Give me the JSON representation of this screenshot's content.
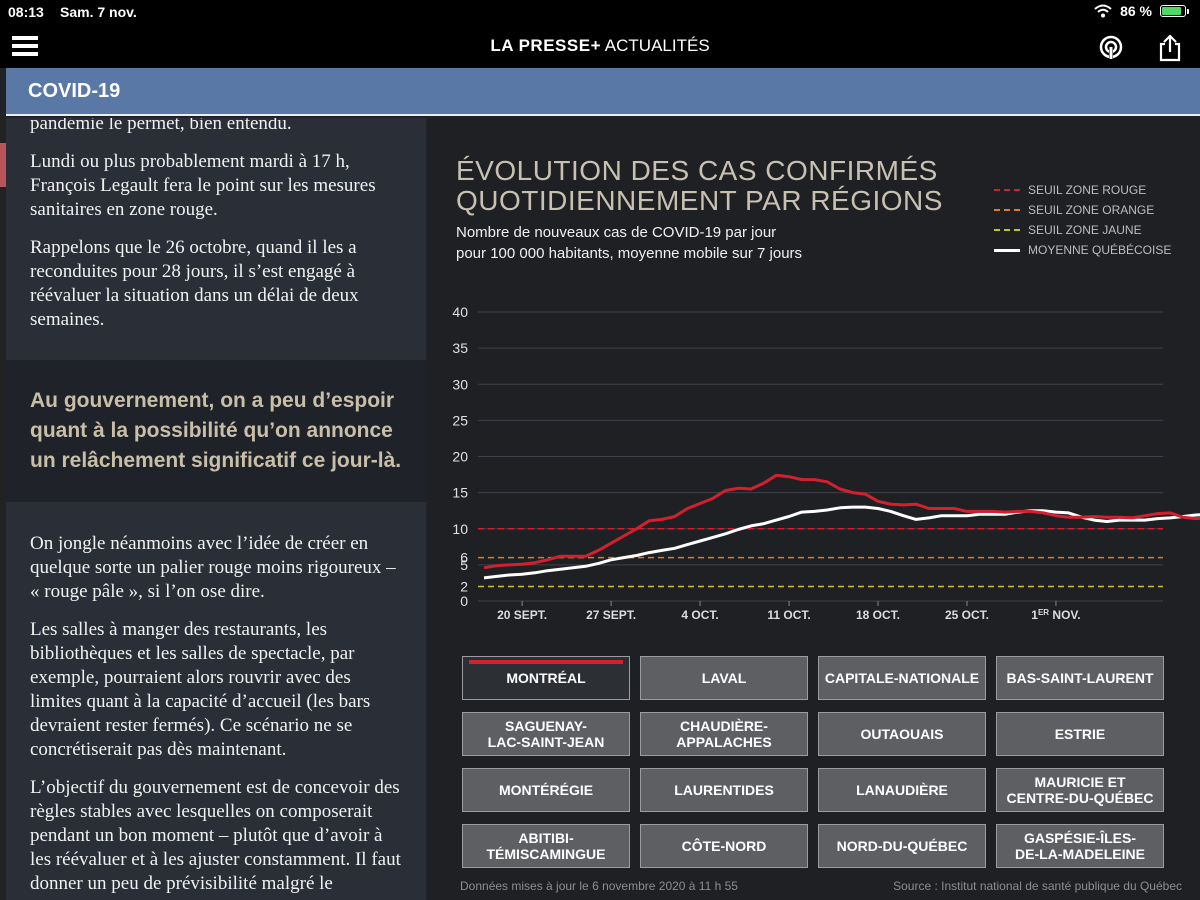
{
  "status": {
    "time": "08:13",
    "date": "Sam. 7 nov.",
    "battery": "86 %",
    "battery_level": 0.86,
    "wifi_icon": "wifi-icon"
  },
  "header": {
    "brand": "LA PRESSE+",
    "section": "ACTUALITÉS"
  },
  "banner": {
    "label": "COVID-19"
  },
  "article": {
    "paragraphs_top": [
      "pandémie le permet, bien entendu.",
      "Lundi ou plus probablement mardi à 17 h, François Legault fera le point sur les mesures sanitaires en zone rouge.",
      "Rappelons que le 26 octobre, quand il les a reconduites pour 28 jours, il s’est engagé à réévaluer la situation dans un délai de deux semaines."
    ],
    "quote": "Au gouvernement, on a peu d’espoir quant à la possibilité qu’on annonce un relâchement significatif ce jour-là.",
    "paragraphs_bottom": [
      "On jongle néanmoins avec l’idée de créer en quelque sorte un palier rouge moins rigoureux – « rouge pâle », si l’on ose dire.",
      "Les salles à manger des restaurants, les bibliothèques et les salles de spectacle, par exemple, pourraient alors rouvrir avec des limites quant à la capacité d’accueil (les bars devraient rester fermés). Ce scénario ne se concrétiserait pas dès maintenant.",
      "L’objectif du gouvernement est de concevoir des règles stables avec lesquelles on composerait pendant un bon moment – plutôt que d’avoir à les réévaluer et à les ajuster constamment. Il faut donner un peu de prévisibilité malgré le contexte."
    ]
  },
  "chart": {
    "title_line1": "ÉVOLUTION DES CAS CONFIRMÉS",
    "title_line2": "QUOTIDIENNEMENT PAR RÉGIONS",
    "subtitle_line1": "Nombre de nouveaux cas de COVID-19 par jour",
    "subtitle_line2": "pour 100 000 habitants, moyenne mobile sur 7 jours",
    "legend": [
      {
        "label": "SEUIL ZONE ROUGE",
        "color": "#d3202e",
        "style": "dashed"
      },
      {
        "label": "SEUIL ZONE ORANGE",
        "color": "#e07a1f",
        "style": "dashed"
      },
      {
        "label": "SEUIL ZONE JAUNE",
        "color": "#c9c21c",
        "style": "dashed"
      },
      {
        "label": "MOYENNE QUÉBÉCOISE",
        "color": "#ffffff",
        "style": "solid"
      }
    ],
    "regions": [
      {
        "label": "MONTRÉAL",
        "active": true
      },
      {
        "label": "LAVAL",
        "active": false
      },
      {
        "label": "CAPITALE-NATIONALE",
        "active": false
      },
      {
        "label": "BAS-SAINT-LAURENT",
        "active": false
      },
      {
        "label": "SAGUENAY-\nLAC-SAINT-JEAN",
        "active": false
      },
      {
        "label": "CHAUDIÈRE-\nAPPALACHES",
        "active": false
      },
      {
        "label": "OUTAOUAIS",
        "active": false
      },
      {
        "label": "ESTRIE",
        "active": false
      },
      {
        "label": "MONTÉRÉGIE",
        "active": false
      },
      {
        "label": "LAURENTIDES",
        "active": false
      },
      {
        "label": "LANAUDIÈRE",
        "active": false
      },
      {
        "label": "MAURICIE ET\nCENTRE-DU-QUÉBEC",
        "active": false
      },
      {
        "label": "ABITIBI-\nTÉMISCAMINGUE",
        "active": false
      },
      {
        "label": "CÔTE-NORD",
        "active": false
      },
      {
        "label": "NORD-DU-QUÉBEC",
        "active": false
      },
      {
        "label": "GASPÉSIE-ÎLES-\nDE-LA-MADELEINE",
        "active": false
      }
    ],
    "footer_left": "Données mises à jour le 6 novembre 2020 à 11 h 55",
    "footer_right": "Source : Institut national de santé publique du Québec"
  },
  "chart_data": {
    "type": "line",
    "x_tick_labels": [
      "20 SEPT.",
      "27 SEPT.",
      "4 OCT.",
      "11 OCT.",
      "18 OCT.",
      "25 OCT.",
      "1ER NOV."
    ],
    "y_ticks": [
      0,
      2,
      5,
      6,
      10,
      15,
      20,
      25,
      30,
      35,
      40
    ],
    "ylim": [
      0,
      40
    ],
    "x_start_day": "2020-09-17",
    "thresholds": [
      {
        "name": "SEUIL ZONE ROUGE",
        "value": 10,
        "color": "#d3202e"
      },
      {
        "name": "SEUIL ZONE ORANGE",
        "value": 6,
        "color": "#e07a1f"
      },
      {
        "name": "SEUIL ZONE JAUNE",
        "value": 2,
        "color": "#c9c21c"
      }
    ],
    "series": [
      {
        "name": "MONTRÉAL",
        "color": "#d3202e",
        "values": [
          4.6,
          4.9,
          5.0,
          5.1,
          5.3,
          5.7,
          6.2,
          6.2,
          6.2,
          7.0,
          8.0,
          9.0,
          10.0,
          11.1,
          11.3,
          11.7,
          12.8,
          13.5,
          14.2,
          15.3,
          15.6,
          15.5,
          16.3,
          17.4,
          17.2,
          16.8,
          16.8,
          16.5,
          15.5,
          15.0,
          14.8,
          13.8,
          13.4,
          13.3,
          13.4,
          12.8,
          12.8,
          12.8,
          12.4,
          12.4,
          12.4,
          12.3,
          12.4,
          12.4,
          12.2,
          11.8,
          11.6,
          11.6,
          11.7,
          11.6,
          11.6,
          11.5,
          11.8,
          12.1,
          12.2,
          11.6,
          11.4,
          11.5,
          11.5
        ]
      },
      {
        "name": "MOYENNE QUÉBÉCOISE",
        "color": "#ffffff",
        "values": [
          3.2,
          3.4,
          3.6,
          3.7,
          3.9,
          4.2,
          4.4,
          4.6,
          4.8,
          5.2,
          5.7,
          6.0,
          6.3,
          6.7,
          7.0,
          7.3,
          7.8,
          8.3,
          8.8,
          9.3,
          9.9,
          10.4,
          10.7,
          11.2,
          11.7,
          12.3,
          12.4,
          12.6,
          12.9,
          13.0,
          13.0,
          12.8,
          12.4,
          11.8,
          11.3,
          11.5,
          11.8,
          11.8,
          11.8,
          12.0,
          12.0,
          12.0,
          12.3,
          12.5,
          12.5,
          12.3,
          12.2,
          11.6,
          11.2,
          11.0,
          11.2,
          11.2,
          11.2,
          11.4,
          11.5,
          11.7,
          11.9,
          12.0,
          12.2
        ]
      }
    ]
  }
}
